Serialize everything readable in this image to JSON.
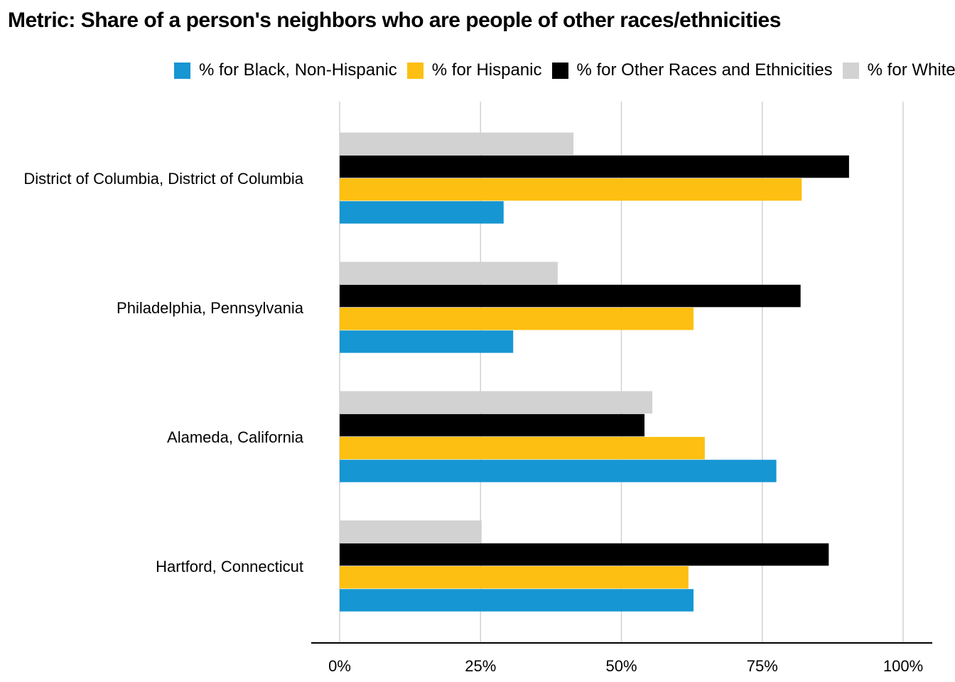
{
  "title": "Metric: Share of a person's neighbors who are people of other races/ethnicities",
  "legend": [
    {
      "label": "% for Black, Non-Hispanic",
      "color": "#1696d2"
    },
    {
      "label": "% for Hispanic",
      "color": "#fdbf11"
    },
    {
      "label": "% for Other Races and Ethnicities",
      "color": "#000000"
    },
    {
      "label": "% for White",
      "color": "#d2d2d2"
    }
  ],
  "chart_data": {
    "type": "bar",
    "orientation": "horizontal",
    "categories": [
      "District of Columbia, District of Columbia",
      "Philadelphia, Pennsylvania",
      "Alameda, California",
      "Hartford, Connecticut"
    ],
    "series": [
      {
        "name": "% for Black, Non-Hispanic",
        "color": "#1696d2",
        "values": [
          29.1,
          30.8,
          77.5,
          62.8
        ]
      },
      {
        "name": "% for Hispanic",
        "color": "#fdbf11",
        "values": [
          82.0,
          62.8,
          64.8,
          61.9
        ]
      },
      {
        "name": "% for Other Races and Ethnicities",
        "color": "#000000",
        "values": [
          90.4,
          81.8,
          54.1,
          86.8
        ]
      },
      {
        "name": "% for White",
        "color": "#d2d2d2",
        "values": [
          41.5,
          38.7,
          55.5,
          25.2
        ]
      }
    ],
    "xlim": [
      0,
      100
    ],
    "xticks": [
      "0%",
      "25%",
      "50%",
      "75%",
      "100%"
    ],
    "xtick_values": [
      0,
      25,
      50,
      75,
      100
    ],
    "grid": true,
    "legend_position": "top"
  }
}
